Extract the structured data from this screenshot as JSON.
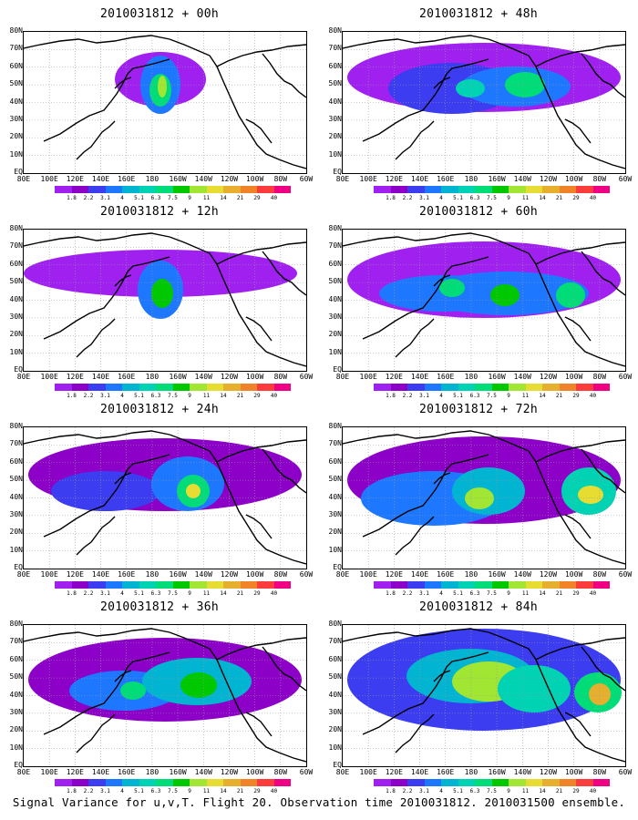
{
  "panels": [
    {
      "title": "2010031812 + 00h"
    },
    {
      "title": "2010031812 + 48h"
    },
    {
      "title": "2010031812 + 12h"
    },
    {
      "title": "2010031812 + 60h"
    },
    {
      "title": "2010031812 + 24h"
    },
    {
      "title": "2010031812 + 72h"
    },
    {
      "title": "2010031812 + 36h"
    },
    {
      "title": "2010031812 + 84h"
    }
  ],
  "lat_labels": [
    "80N",
    "70N",
    "60N",
    "50N",
    "40N",
    "30N",
    "20N",
    "10N",
    "EQ"
  ],
  "lon_labels": [
    "80E",
    "100E",
    "120E",
    "140E",
    "160E",
    "180",
    "160W",
    "140W",
    "120W",
    "100W",
    "80W",
    "60W"
  ],
  "colorbar": {
    "labels": [
      "1.8",
      "2.2",
      "3.1",
      "4",
      "5.1",
      "6.3",
      "7.5",
      "9",
      "11",
      "14",
      "21",
      "29",
      "40"
    ],
    "colors": [
      "#a020f0",
      "#8c00c8",
      "#3c3cf0",
      "#1e78ff",
      "#00b4d2",
      "#00d2b4",
      "#00dc78",
      "#00c800",
      "#a0e632",
      "#e6dc32",
      "#e6af2d",
      "#f08228",
      "#fa3c3c",
      "#f00082"
    ]
  },
  "caption": "Signal Variance for u,v,T. Flight 20. Observation time 2010031812. 2010031500 ensemble."
}
